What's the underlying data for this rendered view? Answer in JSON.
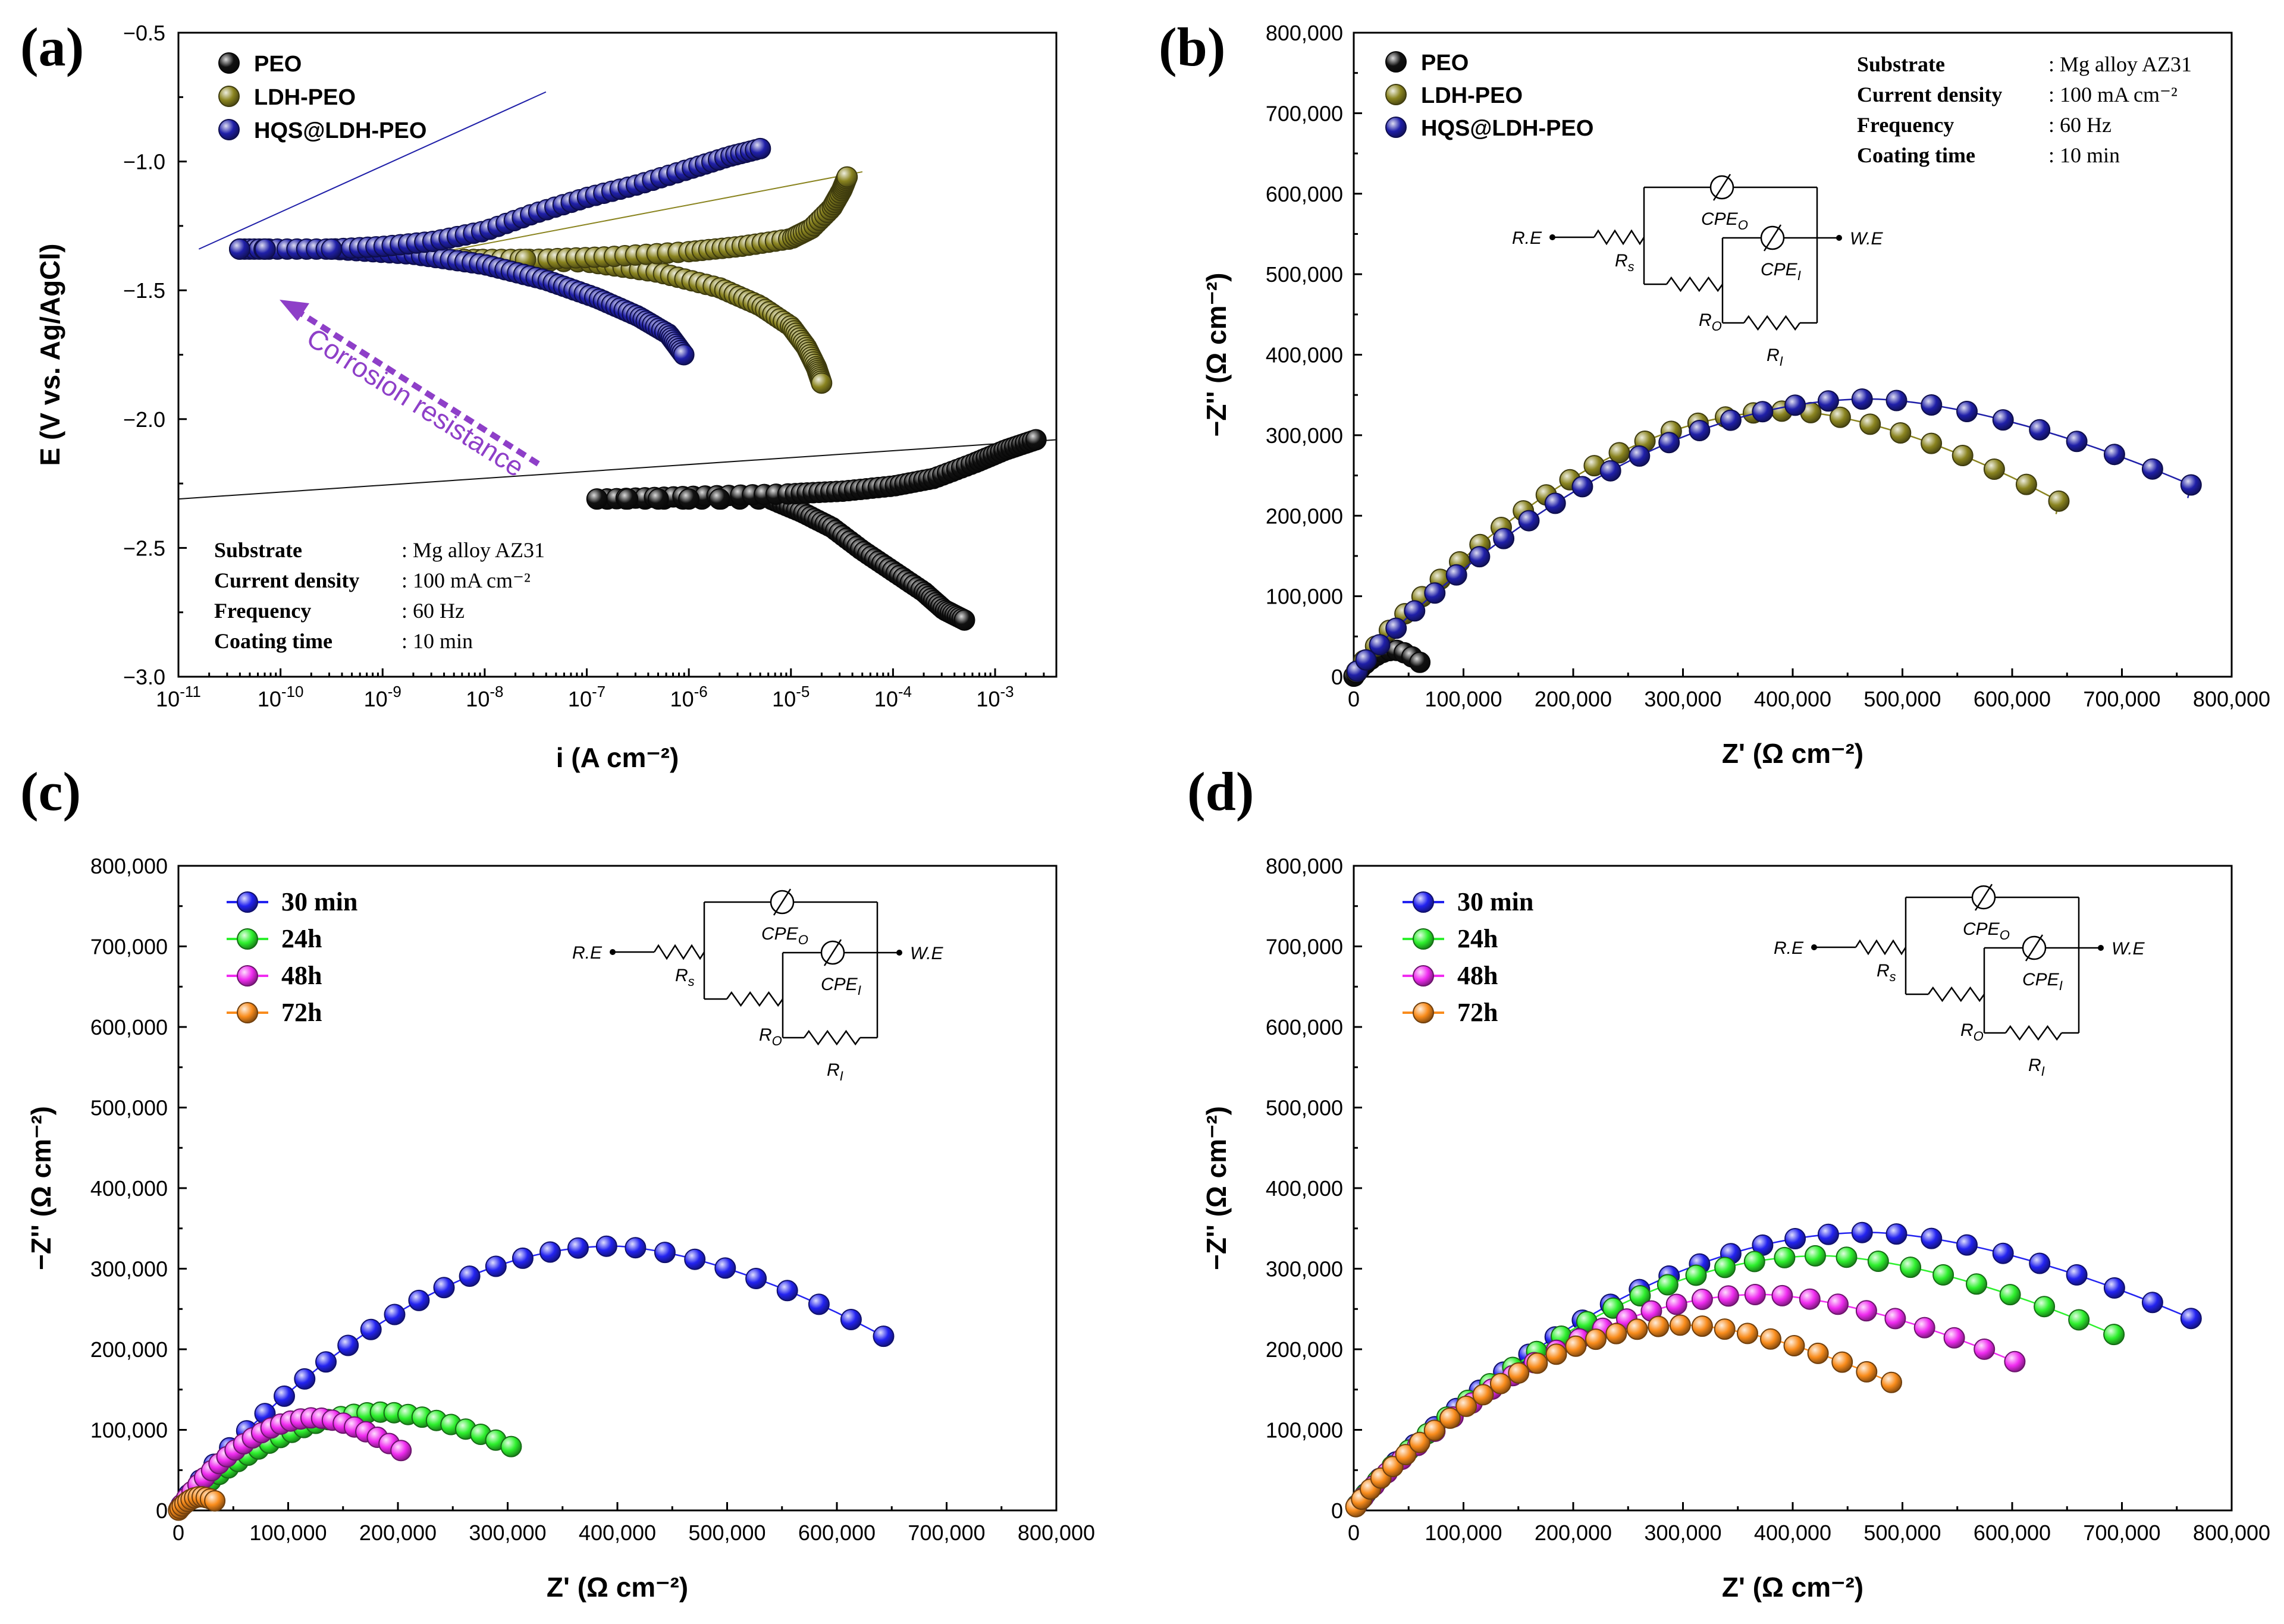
{
  "figure": {
    "panels": [
      "(a)",
      "(b)",
      "(c)",
      "(d)"
    ]
  },
  "coating_info": {
    "rows": [
      {
        "key": "Substrate",
        "value": ": Mg alloy AZ31"
      },
      {
        "key": "Current density",
        "value": ": 100 mA cm⁻²"
      },
      {
        "key": "Frequency",
        "value": ": 60 Hz"
      },
      {
        "key": "Coating time",
        "value": ": 10 min"
      }
    ]
  },
  "circuit": {
    "labels": {
      "re": "R.E",
      "we": "W.E",
      "rs": "Rs",
      "cpeo": "CPEO",
      "ro": "RO",
      "cpei": "CPEI",
      "ri": "RI"
    }
  },
  "colors": {
    "black": "#111111",
    "olive": "#8a8420",
    "navy": "#1f1fa8",
    "blue": "#2323f0",
    "green": "#2ef02e",
    "magenta": "#f02cf0",
    "orange": "#f98c1c",
    "annotation": "#8e3fc8"
  },
  "chart_data": [
    {
      "panel": "(a)",
      "type": "scatter",
      "title": "",
      "xlabel": "i (A cm⁻²)",
      "ylabel": "E (V vs. Ag/AgCl)",
      "xscale": "log",
      "xlim_log10": [
        -11,
        -2.4
      ],
      "ylim": [
        -3.0,
        -0.5
      ],
      "xticks_log10": [
        -11,
        -10,
        -9,
        -8,
        -7,
        -6,
        -5,
        -4,
        -3
      ],
      "xtick_labels": [
        "10-11",
        "10-10",
        "10-9",
        "10-8",
        "10-7",
        "10-6",
        "10-5",
        "10-4",
        "10-3"
      ],
      "yticks": [
        -3.0,
        -2.5,
        -2.0,
        -1.5,
        -1.0,
        -0.5
      ],
      "ytick_labels": [
        "−3.0",
        "−2.5",
        "−2.0",
        "−1.5",
        "−1.0",
        "−0.5"
      ],
      "annotation": "Corrosion resistance",
      "legend_position": "top-left",
      "series": [
        {
          "name": "PEO",
          "color": "#111111",
          "anodic": [
            [
              -6.8,
              -2.31
            ],
            [
              -6.0,
              -2.3
            ],
            [
              -5.0,
              -2.29
            ],
            [
              -4.5,
              -2.28
            ],
            [
              -4.0,
              -2.26
            ],
            [
              -3.6,
              -2.23
            ],
            [
              -3.2,
              -2.17
            ],
            [
              -2.9,
              -2.12
            ],
            [
              -2.6,
              -2.08
            ]
          ],
          "cathodic": [
            [
              -6.8,
              -2.31
            ],
            [
              -5.2,
              -2.31
            ],
            [
              -4.9,
              -2.36
            ],
            [
              -4.6,
              -2.42
            ],
            [
              -4.3,
              -2.51
            ],
            [
              -4.0,
              -2.59
            ],
            [
              -3.7,
              -2.67
            ],
            [
              -3.5,
              -2.74
            ],
            [
              -3.3,
              -2.78
            ]
          ]
        },
        {
          "name": "LDH-PEO",
          "color": "#8a8420",
          "anodic": [
            [
              -8.2,
              -1.38
            ],
            [
              -7.5,
              -1.38
            ],
            [
              -6.8,
              -1.37
            ],
            [
              -6.0,
              -1.35
            ],
            [
              -5.5,
              -1.33
            ],
            [
              -5.0,
              -1.3
            ],
            [
              -4.8,
              -1.26
            ],
            [
              -4.6,
              -1.18
            ],
            [
              -4.5,
              -1.11
            ],
            [
              -4.45,
              -1.06
            ]
          ],
          "cathodic": [
            [
              -8.2,
              -1.38
            ],
            [
              -7.0,
              -1.39
            ],
            [
              -6.3,
              -1.43
            ],
            [
              -5.7,
              -1.49
            ],
            [
              -5.3,
              -1.56
            ],
            [
              -5.0,
              -1.64
            ],
            [
              -4.85,
              -1.72
            ],
            [
              -4.75,
              -1.8
            ],
            [
              -4.7,
              -1.86
            ]
          ]
        },
        {
          "name": "HQS@LDH-PEO",
          "color": "#1f1fa8",
          "anodic": [
            [
              -10.4,
              -1.34
            ],
            [
              -10.1,
              -1.34
            ],
            [
              -9.5,
              -1.34
            ],
            [
              -9.0,
              -1.33
            ],
            [
              -8.5,
              -1.31
            ],
            [
              -8.0,
              -1.27
            ],
            [
              -7.5,
              -1.2
            ],
            [
              -7.0,
              -1.14
            ],
            [
              -6.5,
              -1.09
            ],
            [
              -6.0,
              -1.03
            ],
            [
              -5.6,
              -0.98
            ],
            [
              -5.3,
              -0.95
            ]
          ],
          "cathodic": [
            [
              -9.5,
              -1.34
            ],
            [
              -8.7,
              -1.36
            ],
            [
              -8.0,
              -1.4
            ],
            [
              -7.4,
              -1.46
            ],
            [
              -6.9,
              -1.53
            ],
            [
              -6.5,
              -1.6
            ],
            [
              -6.2,
              -1.67
            ],
            [
              -6.05,
              -1.75
            ]
          ]
        }
      ]
    },
    {
      "panel": "(b)",
      "type": "scatter",
      "xlabel": "Z' (Ω cm⁻²)",
      "ylabel": "−Z'' (Ω cm⁻²)",
      "xlim": [
        0,
        800000
      ],
      "ylim": [
        0,
        800000
      ],
      "ticks": [
        0,
        100000,
        200000,
        300000,
        400000,
        500000,
        600000,
        700000,
        800000
      ],
      "tick_labels": [
        "0",
        "100,000",
        "200,000",
        "300,000",
        "400,000",
        "500,000",
        "600,000",
        "700,000",
        "800,000"
      ],
      "legend_position": "top-left",
      "series": [
        {
          "name": "PEO",
          "color": "#111111",
          "xmax": 60000,
          "peak_y": 33000,
          "fit": false
        },
        {
          "name": "LDH-PEO",
          "color": "#8a8420",
          "xmax": 640000,
          "peak_y": 330000,
          "end_y": 220000,
          "fit": true
        },
        {
          "name": "HQS@LDH-PEO",
          "color": "#1f1fa8",
          "xmax": 760000,
          "peak_y": 345000,
          "end_y": 240000,
          "fit": true
        }
      ]
    },
    {
      "panel": "(c)",
      "type": "scatter",
      "xlabel": "Z' (Ω cm⁻²)",
      "ylabel": "−Z'' (Ω cm⁻²)",
      "xlim": [
        0,
        800000
      ],
      "ylim": [
        0,
        800000
      ],
      "ticks": [
        0,
        100000,
        200000,
        300000,
        400000,
        500000,
        600000,
        700000,
        800000
      ],
      "tick_labels": [
        "0",
        "100,000",
        "200,000",
        "300,000",
        "400,000",
        "500,000",
        "600,000",
        "700,000",
        "800,000"
      ],
      "legend_position": "top-left",
      "series": [
        {
          "name": "30 min",
          "color": "#2323f0",
          "xmax": 640000,
          "peak_y": 328000,
          "end_y": 218000
        },
        {
          "name": "24h",
          "color": "#2ef02e",
          "xmax": 302000,
          "peak_y": 122000,
          "end_y": 80000
        },
        {
          "name": "48h",
          "color": "#f02cf0",
          "xmax": 202000,
          "peak_y": 115000,
          "end_y": 75000
        },
        {
          "name": "72h",
          "color": "#f98c1c",
          "xmax": 33000,
          "peak_y": 17000,
          "end_y": 12000
        }
      ]
    },
    {
      "panel": "(d)",
      "type": "scatter",
      "xlabel": "Z' (Ω cm⁻²)",
      "ylabel": "−Z'' (Ω cm⁻²)",
      "xlim": [
        0,
        800000
      ],
      "ylim": [
        0,
        800000
      ],
      "ticks": [
        0,
        100000,
        200000,
        300000,
        400000,
        500000,
        600000,
        700000,
        800000
      ],
      "tick_labels": [
        "0",
        "100,000",
        "200,000",
        "300,000",
        "400,000",
        "500,000",
        "600,000",
        "700,000",
        "800,000"
      ],
      "legend_position": "top-left",
      "series": [
        {
          "name": "30 min",
          "color": "#2323f0",
          "xmax": 760000,
          "peak_y": 345000,
          "end_y": 240000
        },
        {
          "name": "24h",
          "color": "#2ef02e",
          "xmax": 690000,
          "peak_y": 316000,
          "end_y": 220000
        },
        {
          "name": "48h",
          "color": "#f02cf0",
          "xmax": 600000,
          "peak_y": 268000,
          "end_y": 186000
        },
        {
          "name": "72h",
          "color": "#f98c1c",
          "xmax": 488000,
          "peak_y": 230000,
          "end_y": 160000
        }
      ]
    }
  ]
}
